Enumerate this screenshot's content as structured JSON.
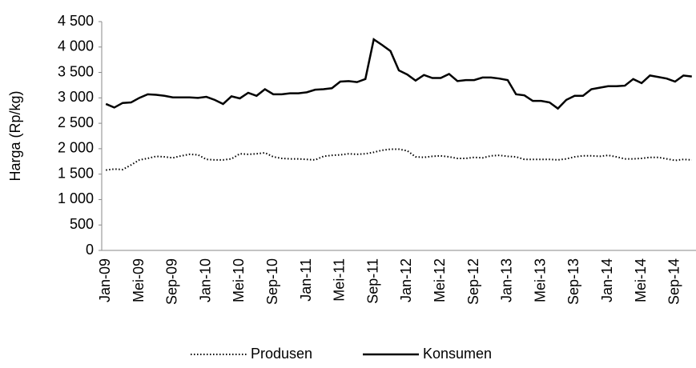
{
  "chart_data": {
    "type": "line",
    "y_label": "Harga (Rp/kg)",
    "categories": [
      "Jan-09",
      null,
      null,
      null,
      "Mei-09",
      null,
      null,
      null,
      "Sep-09",
      null,
      null,
      null,
      "Jan-10",
      null,
      null,
      null,
      "Mei-10",
      null,
      null,
      null,
      "Sep-10",
      null,
      null,
      null,
      "Jan-11",
      null,
      null,
      null,
      "Mei-11",
      null,
      null,
      null,
      "Sep-11",
      null,
      null,
      null,
      "Jan-12",
      null,
      null,
      null,
      "Mei-12",
      null,
      null,
      null,
      "Sep-12",
      null,
      null,
      null,
      "Jan-13",
      null,
      null,
      null,
      "Mei-13",
      null,
      null,
      null,
      "Sep-13",
      null,
      null,
      null,
      "Jan-14",
      null,
      null,
      null,
      "Mei-14",
      null,
      null,
      null,
      "Sep-14",
      null,
      null
    ],
    "series": [
      {
        "name": "Produsen",
        "color": "#000000",
        "style": "dotted",
        "values": [
          1580,
          1600,
          1590,
          1680,
          1780,
          1810,
          1850,
          1840,
          1820,
          1860,
          1890,
          1880,
          1790,
          1780,
          1780,
          1800,
          1900,
          1890,
          1900,
          1920,
          1840,
          1810,
          1800,
          1800,
          1790,
          1780,
          1850,
          1870,
          1880,
          1900,
          1890,
          1900,
          1930,
          1970,
          1990,
          1990,
          1960,
          1840,
          1830,
          1850,
          1860,
          1840,
          1810,
          1810,
          1830,
          1820,
          1860,
          1870,
          1850,
          1840,
          1790,
          1790,
          1790,
          1790,
          1780,
          1800,
          1840,
          1860,
          1860,
          1850,
          1870,
          1840,
          1800,
          1800,
          1810,
          1830,
          1830,
          1800,
          1770,
          1790,
          1780
        ]
      },
      {
        "name": "Konsumen",
        "color": "#000000",
        "style": "solid",
        "values": [
          2880,
          2810,
          2900,
          2910,
          3000,
          3070,
          3060,
          3040,
          3010,
          3010,
          3010,
          3000,
          3020,
          2960,
          2880,
          3030,
          2990,
          3100,
          3040,
          3170,
          3070,
          3070,
          3090,
          3090,
          3110,
          3160,
          3170,
          3190,
          3320,
          3330,
          3310,
          3370,
          4150,
          4040,
          3920,
          3540,
          3460,
          3340,
          3450,
          3390,
          3390,
          3470,
          3330,
          3350,
          3350,
          3400,
          3400,
          3380,
          3350,
          3070,
          3050,
          2940,
          2940,
          2910,
          2790,
          2960,
          3040,
          3040,
          3170,
          3200,
          3230,
          3230,
          3240,
          3370,
          3290,
          3440,
          3410,
          3380,
          3320,
          3440,
          3420
        ]
      }
    ],
    "ylim": [
      0,
      4500
    ],
    "yticks": [
      0,
      500,
      {
        "value": 1000,
        "label": "1 000"
      },
      {
        "value": 1500,
        "label": "1 500"
      },
      {
        "value": 2000,
        "label": "2 000"
      },
      {
        "value": 2500,
        "label": "2 500"
      },
      {
        "value": 3000,
        "label": "3 000"
      },
      {
        "value": 3500,
        "label": "3 500"
      },
      {
        "value": 4000,
        "label": "4 000"
      },
      {
        "value": 4500,
        "label": "4 500"
      }
    ],
    "grid": false,
    "legend": "bottom"
  }
}
